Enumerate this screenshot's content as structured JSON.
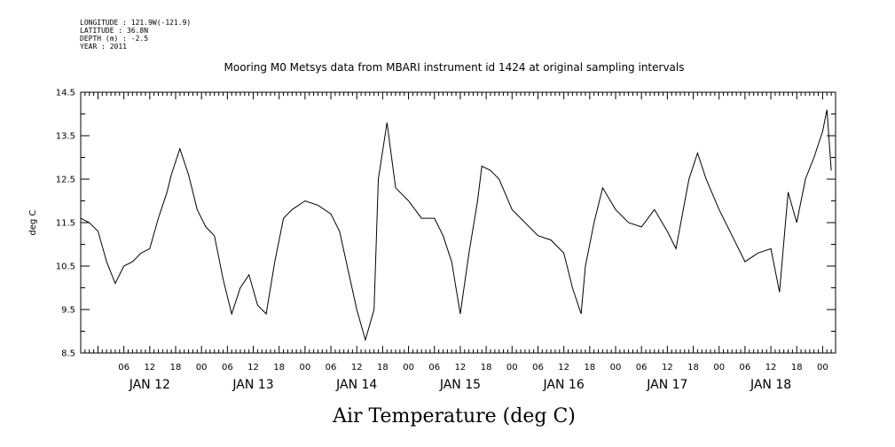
{
  "metadata": {
    "longitude": "LONGITUDE : 121.9W(-121.9)",
    "latitude": "LATITUDE : 36.8N",
    "depth": "DEPTH (m) : -2.5",
    "year": "YEAR : 2011"
  },
  "chart_data": {
    "type": "line",
    "title": "Mooring M0 Metsys data from MBARI instrument id 1424 at original sampling intervals",
    "xlabel": "Air Temperature (deg C)",
    "ylabel": "deg C",
    "ylim": [
      8.5,
      14.5
    ],
    "yticks": [
      8.5,
      9.5,
      10.5,
      11.5,
      12.5,
      13.5,
      14.5
    ],
    "xlim": [
      "2011-01-11 20:00",
      "2011-01-19 03:00"
    ],
    "hour_tick_labels": [
      "06",
      "12",
      "18",
      "00",
      "06",
      "12",
      "18",
      "00",
      "06",
      "12",
      "18",
      "00",
      "06",
      "12",
      "18",
      "00",
      "06",
      "12",
      "18",
      "00",
      "06",
      "12",
      "18",
      "00",
      "06",
      "12",
      "18",
      "00"
    ],
    "day_labels": [
      "JAN 12",
      "JAN 13",
      "JAN 14",
      "JAN 15",
      "JAN 16",
      "JAN 17",
      "JAN 18"
    ],
    "grid": false,
    "series": [
      {
        "color": "#000000",
        "x": [
          "2011-01-11 20:00",
          "2011-01-11 22:00",
          "2011-01-12 00:00",
          "2011-01-12 02:00",
          "2011-01-12 04:00",
          "2011-01-12 06:00",
          "2011-01-12 08:00",
          "2011-01-12 10:00",
          "2011-01-12 12:00",
          "2011-01-12 14:00",
          "2011-01-12 16:00",
          "2011-01-12 17:00",
          "2011-01-12 19:00",
          "2011-01-12 21:00",
          "2011-01-12 23:00",
          "2011-01-13 01:00",
          "2011-01-13 03:00",
          "2011-01-13 05:00",
          "2011-01-13 07:00",
          "2011-01-13 09:00",
          "2011-01-13 11:00",
          "2011-01-13 13:00",
          "2011-01-13 15:00",
          "2011-01-13 17:00",
          "2011-01-13 19:00",
          "2011-01-13 21:00",
          "2011-01-14 00:00",
          "2011-01-14 03:00",
          "2011-01-14 06:00",
          "2011-01-14 08:00",
          "2011-01-14 10:00",
          "2011-01-14 12:00",
          "2011-01-14 14:00",
          "2011-01-14 16:00",
          "2011-01-14 17:00",
          "2011-01-14 19:00",
          "2011-01-14 21:00",
          "2011-01-15 00:00",
          "2011-01-15 03:00",
          "2011-01-15 06:00",
          "2011-01-15 08:00",
          "2011-01-15 10:00",
          "2011-01-15 12:00",
          "2011-01-15 14:00",
          "2011-01-15 16:00",
          "2011-01-15 17:00",
          "2011-01-15 19:00",
          "2011-01-15 21:00",
          "2011-01-16 00:00",
          "2011-01-16 03:00",
          "2011-01-16 06:00",
          "2011-01-16 09:00",
          "2011-01-16 12:00",
          "2011-01-16 14:00",
          "2011-01-16 16:00",
          "2011-01-16 17:00",
          "2011-01-16 19:00",
          "2011-01-16 21:00",
          "2011-01-17 00:00",
          "2011-01-17 03:00",
          "2011-01-17 06:00",
          "2011-01-17 09:00",
          "2011-01-17 12:00",
          "2011-01-17 14:00",
          "2011-01-17 17:00",
          "2011-01-17 19:00",
          "2011-01-17 21:00",
          "2011-01-18 00:00",
          "2011-01-18 03:00",
          "2011-01-18 06:00",
          "2011-01-18 09:00",
          "2011-01-18 12:00",
          "2011-01-18 14:00",
          "2011-01-18 16:00",
          "2011-01-18 18:00",
          "2011-01-18 20:00",
          "2011-01-18 22:00",
          "2011-01-19 00:00",
          "2011-01-19 01:00",
          "2011-01-19 02:00"
        ],
        "y": [
          11.6,
          11.5,
          11.3,
          10.6,
          10.1,
          10.5,
          10.6,
          10.8,
          10.9,
          11.6,
          12.2,
          12.6,
          13.2,
          12.6,
          11.8,
          11.4,
          11.2,
          10.2,
          9.4,
          10.0,
          10.3,
          9.6,
          9.4,
          10.6,
          11.6,
          11.8,
          12.0,
          11.9,
          11.7,
          11.3,
          10.4,
          9.5,
          8.8,
          9.5,
          12.5,
          13.8,
          12.3,
          12.0,
          11.6,
          11.6,
          11.2,
          10.6,
          9.4,
          10.8,
          12.0,
          12.8,
          12.7,
          12.5,
          11.8,
          11.5,
          11.2,
          11.1,
          10.8,
          10.0,
          9.4,
          10.5,
          11.5,
          12.3,
          11.8,
          11.5,
          11.4,
          11.8,
          11.3,
          10.9,
          12.5,
          13.1,
          12.5,
          11.8,
          11.2,
          10.6,
          10.8,
          10.9,
          9.9,
          12.2,
          11.5,
          12.5,
          13.0,
          13.6,
          14.1,
          12.7
        ]
      }
    ]
  }
}
